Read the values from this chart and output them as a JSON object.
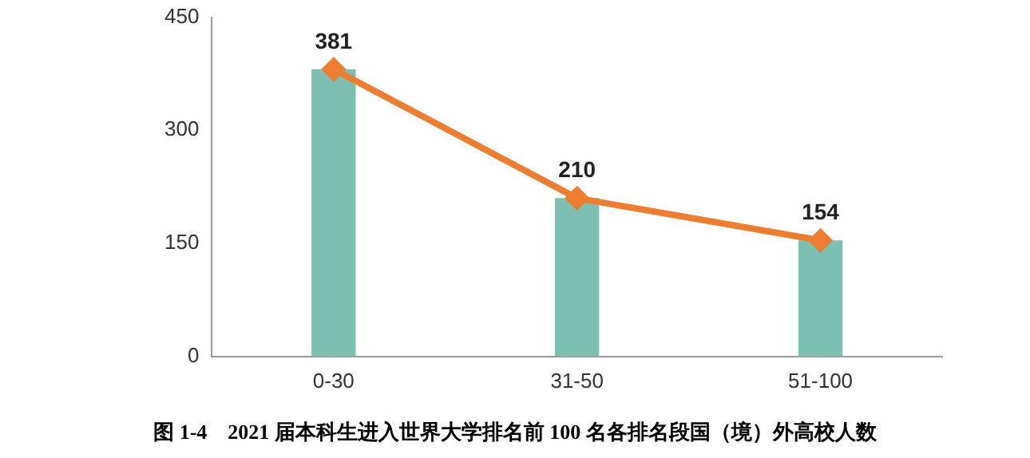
{
  "chart_data": {
    "type": "bar",
    "title": "图 1-4　2021 届本科生进入世界大学排名前 100 名各排名段国（境）外高校人数",
    "categories": [
      "0-30",
      "31-50",
      "51-100"
    ],
    "series": [
      {
        "color": "#7dbfb0",
        "values": [
          381,
          210,
          154
        ]
      },
      {
        "type": "line",
        "color": "#ed7d31",
        "values": [
          381,
          210,
          154
        ],
        "marker": "diamond",
        "value_labels": [
          "381",
          "210",
          "154"
        ]
      }
    ],
    "ylim": [
      0,
      450
    ],
    "yticks": [
      0,
      150,
      300,
      450
    ],
    "grid": false,
    "legend": false
  }
}
